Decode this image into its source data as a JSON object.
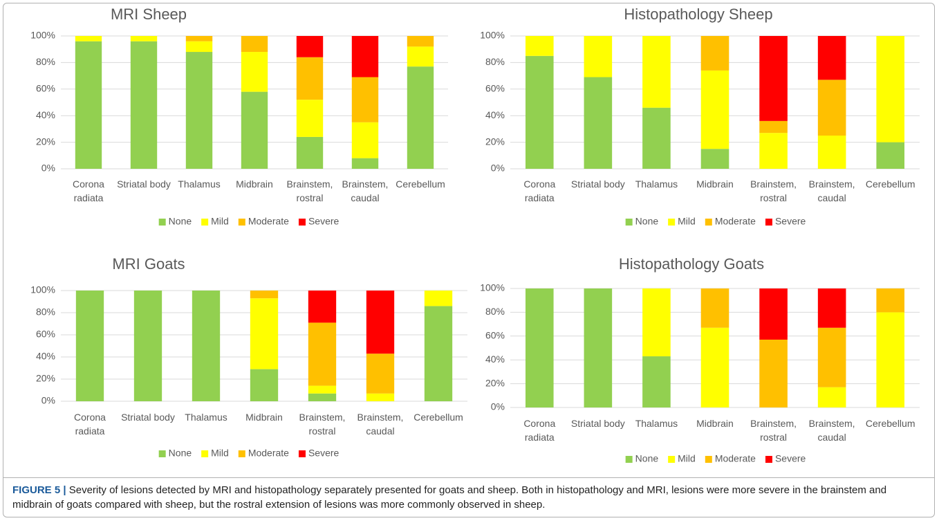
{
  "chart_data": [
    {
      "type": "bar",
      "stacked": true,
      "title": "MRI Sheep",
      "categories": [
        "Corona radiata",
        "Striatal body",
        "Thalamus",
        "Midbrain",
        "Brainstem, rostral",
        "Brainstem, caudal",
        "Cerebellum"
      ],
      "series": [
        {
          "name": "None",
          "color": "#92d050",
          "values": [
            96,
            96,
            88,
            58,
            24,
            8,
            77
          ]
        },
        {
          "name": "Mild",
          "color": "#ffff00",
          "values": [
            4,
            4,
            8,
            30,
            28,
            27,
            15
          ]
        },
        {
          "name": "Moderate",
          "color": "#ffc000",
          "values": [
            0,
            0,
            4,
            12,
            32,
            34,
            8
          ]
        },
        {
          "name": "Severe",
          "color": "#ff0000",
          "values": [
            0,
            0,
            0,
            0,
            16,
            31,
            0
          ]
        }
      ],
      "ylim": [
        0,
        100
      ],
      "yticks": [
        {
          "value": 0,
          "label": "0%"
        },
        {
          "value": 20,
          "label": "20%"
        },
        {
          "value": 40,
          "label": "40%"
        },
        {
          "value": 60,
          "label": "60%"
        },
        {
          "value": 80,
          "label": "80%"
        },
        {
          "value": 100,
          "label": "100%"
        }
      ],
      "grid": true,
      "legend": "bottom"
    },
    {
      "type": "bar",
      "stacked": true,
      "title": "Histopathology Sheep",
      "categories": [
        "Corona radiata",
        "Striatal body",
        "Thalamus",
        "Midbrain",
        "Brainstem, rostral",
        "Brainstem, caudal",
        "Cerebellum"
      ],
      "series": [
        {
          "name": "None",
          "color": "#92d050",
          "values": [
            85,
            69,
            46,
            15,
            0,
            0,
            20
          ]
        },
        {
          "name": "Mild",
          "color": "#ffff00",
          "values": [
            15,
            31,
            54,
            59,
            27,
            25,
            80
          ]
        },
        {
          "name": "Moderate",
          "color": "#ffc000",
          "values": [
            0,
            0,
            0,
            26,
            9,
            42,
            0
          ]
        },
        {
          "name": "Severe",
          "color": "#ff0000",
          "values": [
            0,
            0,
            0,
            0,
            64,
            33,
            0
          ]
        }
      ],
      "ylim": [
        0,
        100
      ],
      "yticks": [
        {
          "value": 0,
          "label": "0%"
        },
        {
          "value": 20,
          "label": "20%"
        },
        {
          "value": 40,
          "label": "40%"
        },
        {
          "value": 60,
          "label": "60%"
        },
        {
          "value": 80,
          "label": "80%"
        },
        {
          "value": 100,
          "label": "100%"
        }
      ],
      "grid": true,
      "legend": "bottom"
    },
    {
      "type": "bar",
      "stacked": true,
      "title": "MRI Goats",
      "categories": [
        "Corona radiata",
        "Striatal body",
        "Thalamus",
        "Midbrain",
        "Brainstem, rostral",
        "Brainstem, caudal",
        "Cerebellum"
      ],
      "series": [
        {
          "name": "None",
          "color": "#92d050",
          "values": [
            100,
            100,
            100,
            29,
            7,
            0,
            86
          ]
        },
        {
          "name": "Mild",
          "color": "#ffff00",
          "values": [
            0,
            0,
            0,
            64,
            7,
            7,
            14
          ]
        },
        {
          "name": "Moderate",
          "color": "#ffc000",
          "values": [
            0,
            0,
            0,
            7,
            57,
            36,
            0
          ]
        },
        {
          "name": "Severe",
          "color": "#ff0000",
          "values": [
            0,
            0,
            0,
            0,
            29,
            57,
            0
          ]
        }
      ],
      "ylim": [
        0,
        100
      ],
      "yticks": [
        {
          "value": 0,
          "label": "0%"
        },
        {
          "value": 20,
          "label": "20%"
        },
        {
          "value": 40,
          "label": "40%"
        },
        {
          "value": 60,
          "label": "60%"
        },
        {
          "value": 80,
          "label": "80%"
        },
        {
          "value": 100,
          "label": "100%"
        }
      ],
      "grid": true,
      "legend": "bottom"
    },
    {
      "type": "bar",
      "stacked": true,
      "title": "Histopathology Goats",
      "categories": [
        "Corona radiata",
        "Striatal body",
        "Thalamus",
        "Midbrain",
        "Brainstem, rostral",
        "Brainstem, caudal",
        "Cerebellum"
      ],
      "series": [
        {
          "name": "None",
          "color": "#92d050",
          "values": [
            100,
            100,
            43,
            0,
            0,
            0,
            0
          ]
        },
        {
          "name": "Mild",
          "color": "#ffff00",
          "values": [
            0,
            0,
            57,
            67,
            0,
            17,
            80
          ]
        },
        {
          "name": "Moderate",
          "color": "#ffc000",
          "values": [
            0,
            0,
            0,
            33,
            57,
            50,
            20
          ]
        },
        {
          "name": "Severe",
          "color": "#ff0000",
          "values": [
            0,
            0,
            0,
            0,
            43,
            33,
            0
          ]
        }
      ],
      "ylim": [
        0,
        100
      ],
      "yticks": [
        {
          "value": 0,
          "label": "0%"
        },
        {
          "value": 20,
          "label": "20%"
        },
        {
          "value": 40,
          "label": "40%"
        },
        {
          "value": 60,
          "label": "60%"
        },
        {
          "value": 80,
          "label": "80%"
        },
        {
          "value": 100,
          "label": "100%"
        }
      ],
      "grid": true,
      "legend": "bottom"
    }
  ],
  "figure_label": "FIGURE 5 |",
  "caption": "Severity of lesions detected by MRI and histopathology separately presented for goats and sheep. Both in histopathology and MRI, lesions were more severe in the brainstem and midbrain of goats compared with sheep, but the rostral extension of lesions was more commonly observed in sheep."
}
